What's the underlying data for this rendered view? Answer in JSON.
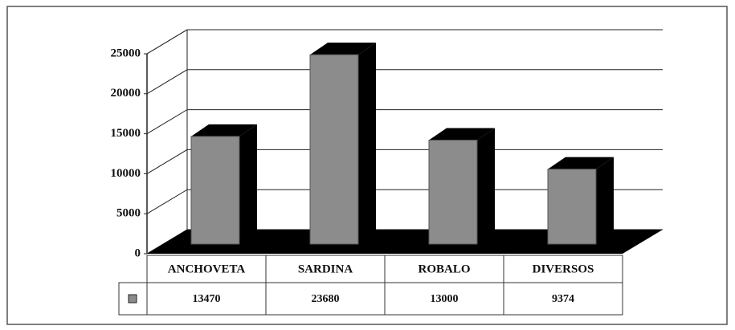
{
  "chart_data": {
    "type": "bar3d",
    "categories": [
      "ANCHOVETA",
      "SARDINA",
      "ROBALO",
      "DIVERSOS"
    ],
    "values": [
      13470,
      23680,
      13000,
      9374
    ],
    "color": "#8c8c8c",
    "ylim": [
      0,
      25000
    ],
    "yticks": [
      0,
      5000,
      10000,
      15000,
      20000,
      25000
    ],
    "grid": true
  }
}
